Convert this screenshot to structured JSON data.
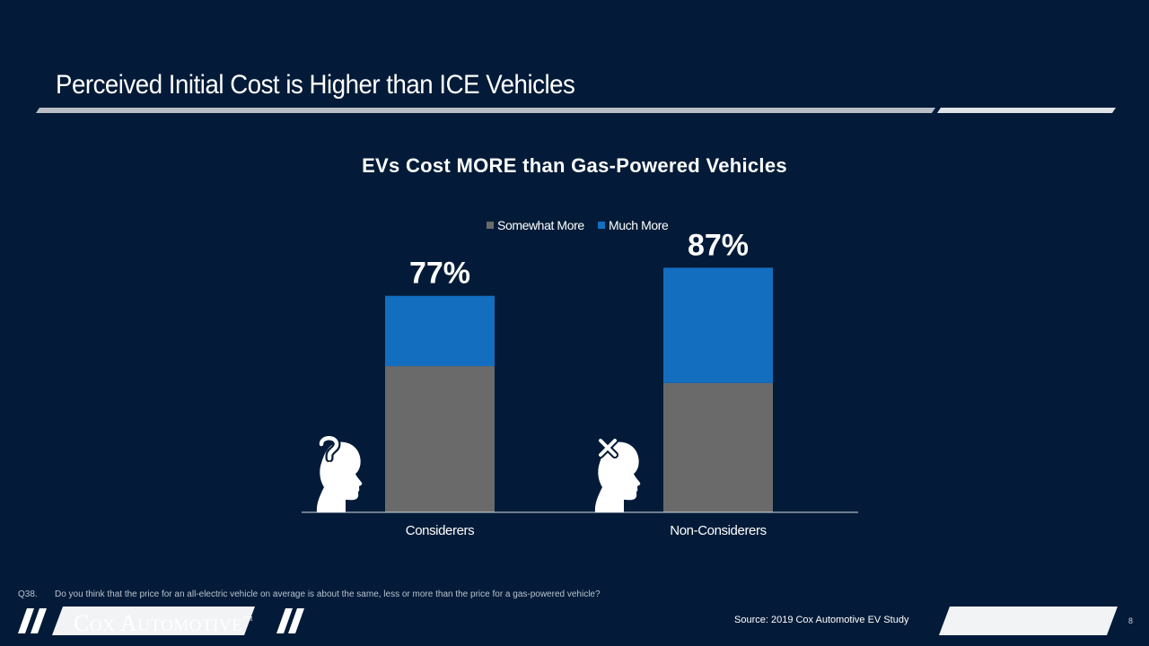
{
  "slide": {
    "title": "Perceived Initial Cost is Higher than ICE Vehicles",
    "question_number": "Q38.",
    "question_text": "Do you think that the price for an all-electric vehicle on average is about the same, less or more than the price for a gas-powered vehicle?",
    "source": "Source: 2019 Cox Automotive EV Study",
    "page_number": "8",
    "logo": "Cox Automotive"
  },
  "colors": {
    "background": "#031b38",
    "somewhat_more": "#6a6a6a",
    "much_more": "#136ebf",
    "rule": "#b9bec6"
  },
  "chart_data": {
    "type": "bar",
    "stacked": true,
    "title": "EVs Cost MORE than Gas-Powered Vehicles",
    "categories": [
      "Considerers",
      "Non-Considerers"
    ],
    "series": [
      {
        "name": "Somewhat More",
        "values": [
          52,
          46
        ]
      },
      {
        "name": "Much More",
        "values": [
          25,
          41
        ]
      }
    ],
    "totals": [
      "77%",
      "87%"
    ],
    "category_icons": [
      "question-head-icon",
      "x-head-icon"
    ],
    "ylim": [
      0,
      100
    ],
    "legend": "top-center",
    "grid": false,
    "xlabel": "",
    "ylabel": ""
  }
}
